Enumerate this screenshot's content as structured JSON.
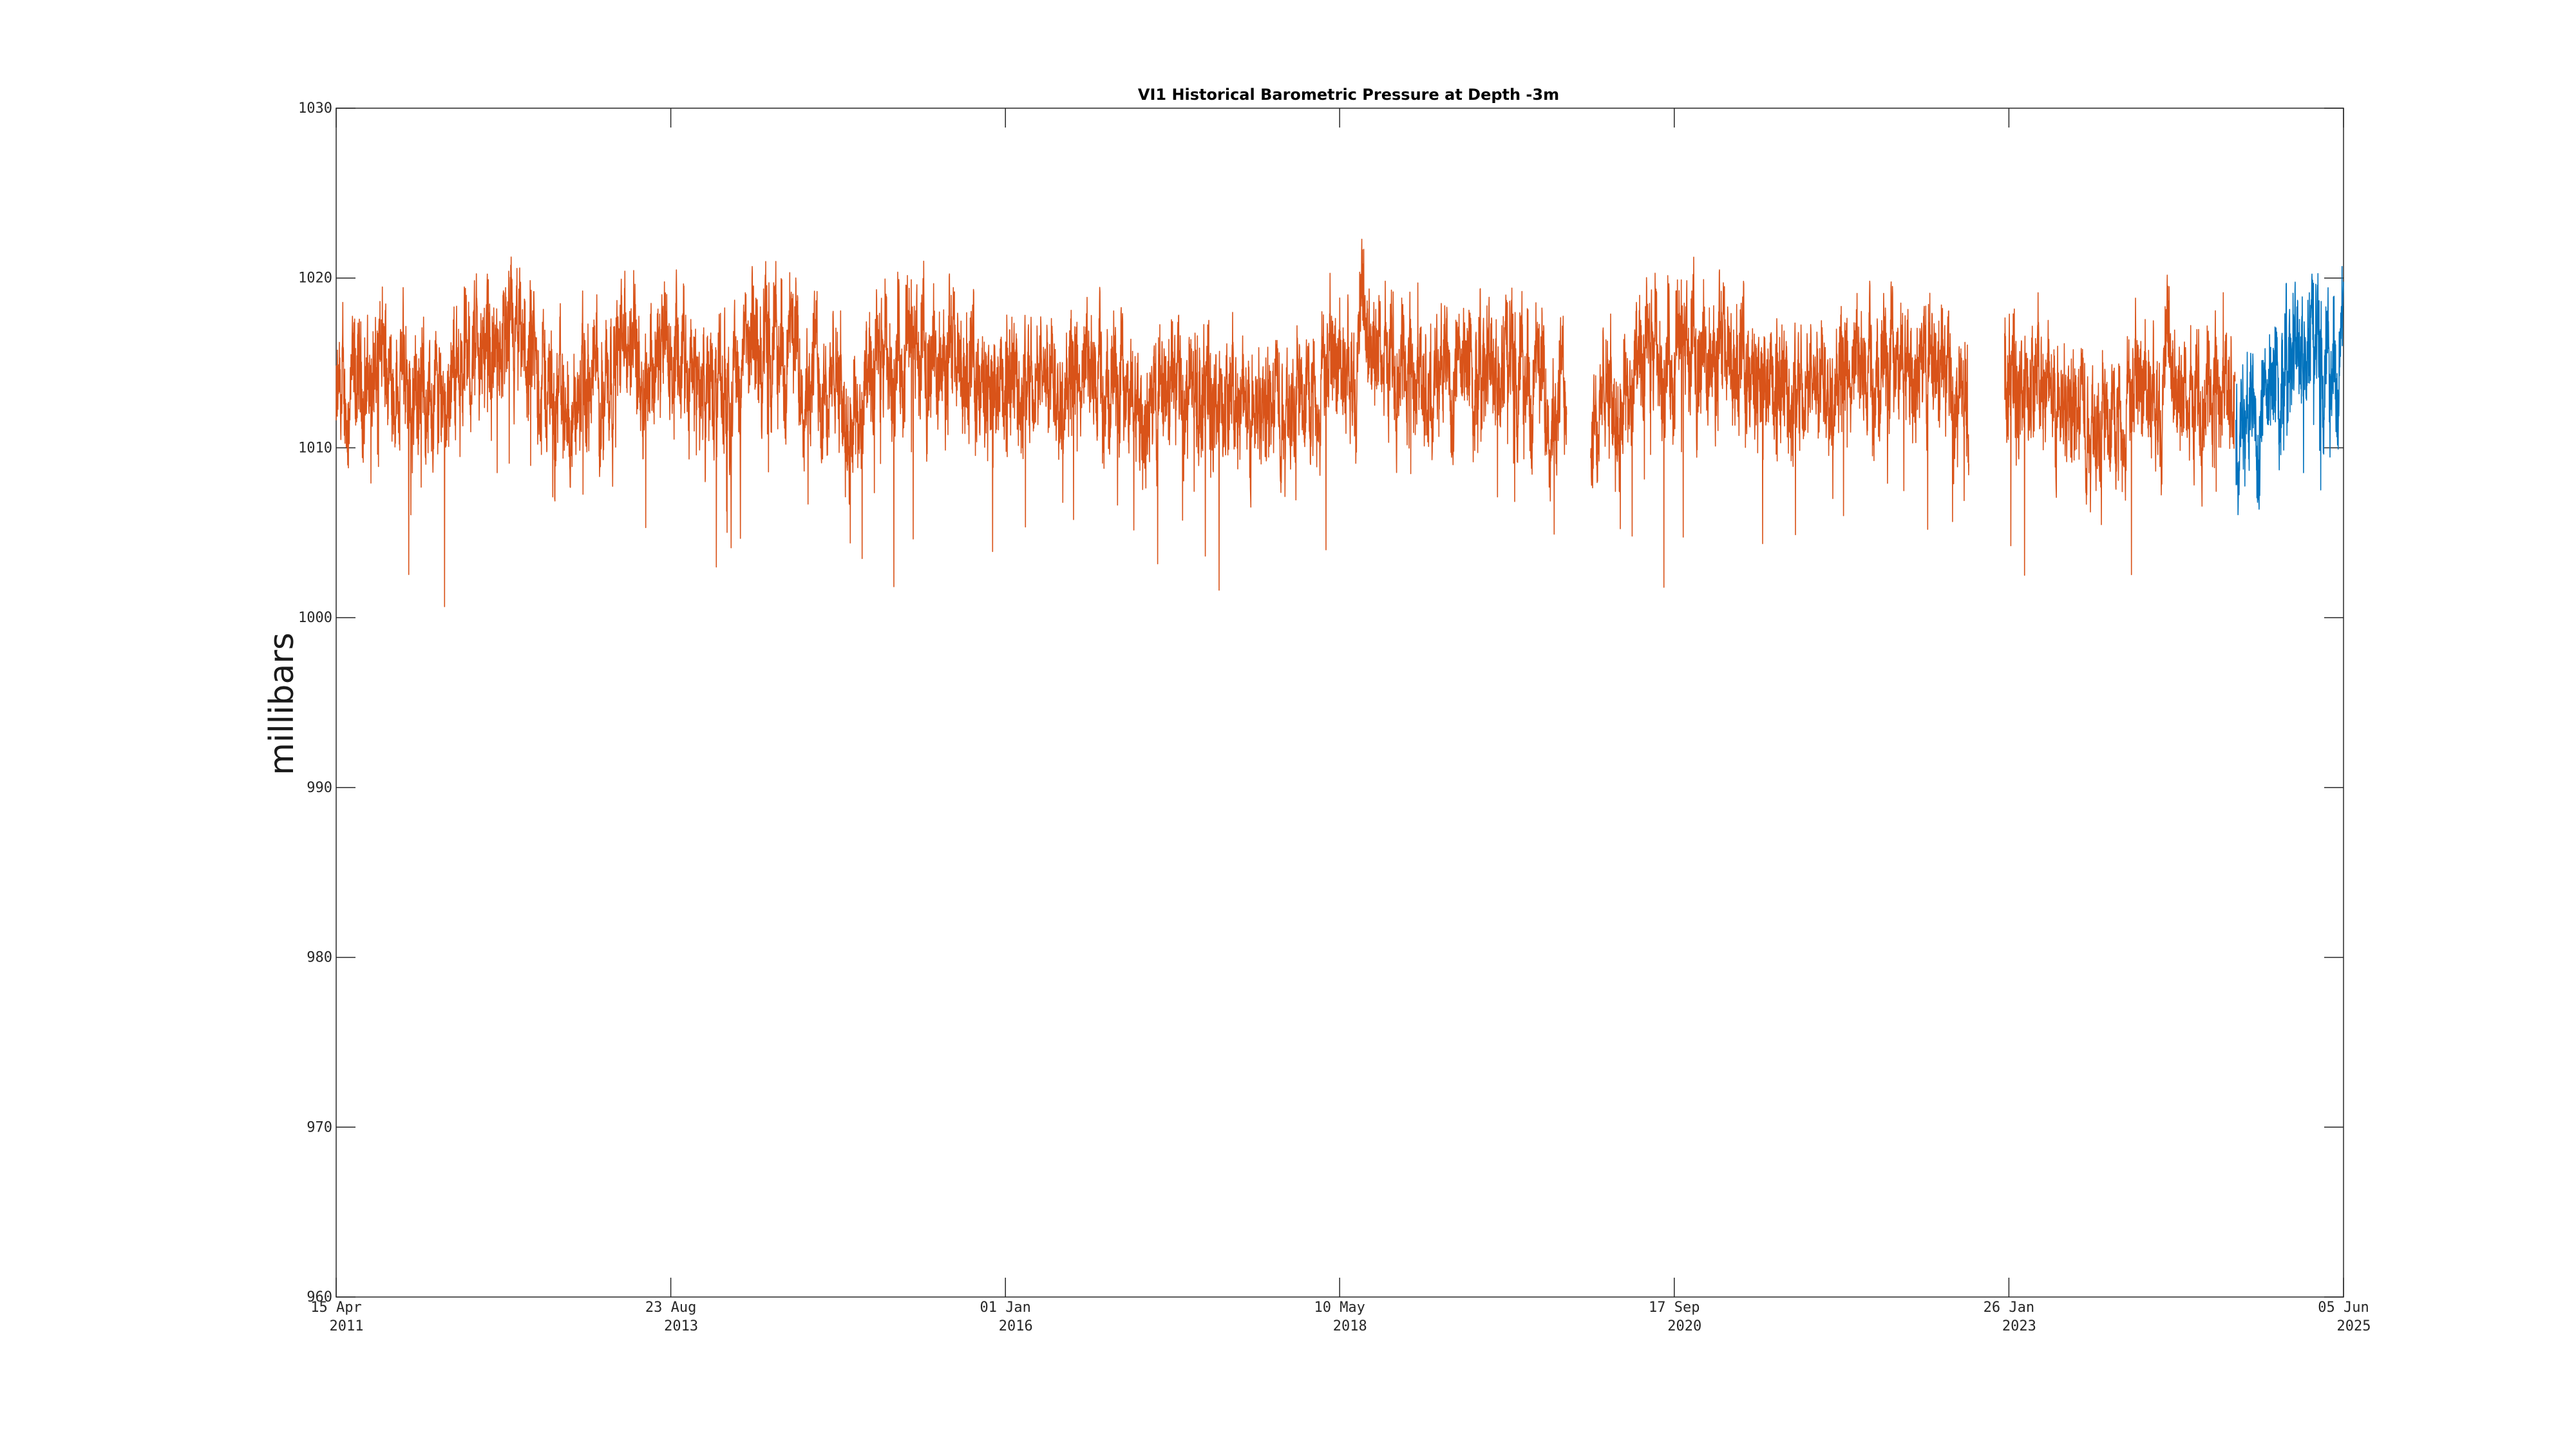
{
  "chart_data": {
    "type": "line",
    "title": "VI1 Historical Barometric Pressure at Depth -3m",
    "xlabel": "",
    "ylabel": "millibars",
    "ylim": [
      960,
      1030
    ],
    "xlim": [
      "2011-04-15",
      "2025-06-05"
    ],
    "yticks": [
      960,
      970,
      980,
      990,
      1000,
      1010,
      1020,
      1030
    ],
    "xticks": [
      {
        "date": "2011-04-15",
        "line1": "15 Apr",
        "line2": "2011"
      },
      {
        "date": "2013-08-23",
        "line1": "23 Aug",
        "line2": "2013"
      },
      {
        "date": "2016-01-01",
        "line1": "01 Jan",
        "line2": "2016"
      },
      {
        "date": "2018-05-10",
        "line1": "10 May",
        "line2": "2018"
      },
      {
        "date": "2020-09-17",
        "line1": "17 Sep",
        "line2": "2020"
      },
      {
        "date": "2023-01-26",
        "line1": "26 Jan",
        "line2": "2023"
      },
      {
        "date": "2025-06-05",
        "line1": "05 Jun",
        "line2": "2025"
      }
    ],
    "grid": false,
    "series": [
      {
        "color": "#d95319",
        "segments": [
          {
            "x": [
              "2011-04-15",
              "2011-08-15",
              "2011-12-15",
              "2012-04-15",
              "2012-08-15",
              "2012-12-15",
              "2013-04-15",
              "2013-08-15",
              "2013-12-15",
              "2014-04-15",
              "2014-08-15",
              "2014-12-15",
              "2015-04-15",
              "2015-08-15",
              "2015-12-15",
              "2016-04-15",
              "2016-08-15",
              "2016-12-15",
              "2017-04-15",
              "2017-08-15",
              "2017-12-15",
              "2018-04-15",
              "2018-08-15",
              "2018-12-15",
              "2019-04-15",
              "2019-08-15",
              "2019-12-15"
            ],
            "y": [
              1012,
              1015,
              1013,
              1016,
              1015,
              1012,
              1016,
              1015,
              1013,
              1016,
              1015,
              1012,
              1016,
              1015,
              1013,
              1015,
              1014,
              1012,
              1014,
              1012,
              1013,
              1015,
              1016,
              1014,
              1015,
              1014,
              1013
            ]
          },
          {
            "x": [
              "2020-02-15",
              "2020-06-15",
              "2020-10-15",
              "2021-02-15",
              "2021-06-15",
              "2021-10-15",
              "2022-02-15",
              "2022-06-15",
              "2022-10-15"
            ],
            "y": [
              1012,
              1014,
              1016,
              1015,
              1013,
              1015,
              1014,
              1015,
              1013
            ]
          },
          {
            "x": [
              "2023-01-15",
              "2023-05-15",
              "2023-09-15",
              "2024-01-15",
              "2024-05-15",
              "2024-08-30"
            ],
            "y": [
              1014,
              1013,
              1012,
              1014,
              1013,
              1014
            ]
          }
        ]
      },
      {
        "color": "#0072bd",
        "segments": [
          {
            "x": [
              "2024-09-01",
              "2024-11-01",
              "2025-01-01",
              "2025-03-01",
              "2025-05-01",
              "2025-06-05"
            ],
            "y": [
              1011,
              1012,
              1015,
              1016,
              1014,
              1016
            ]
          }
        ]
      }
    ]
  }
}
